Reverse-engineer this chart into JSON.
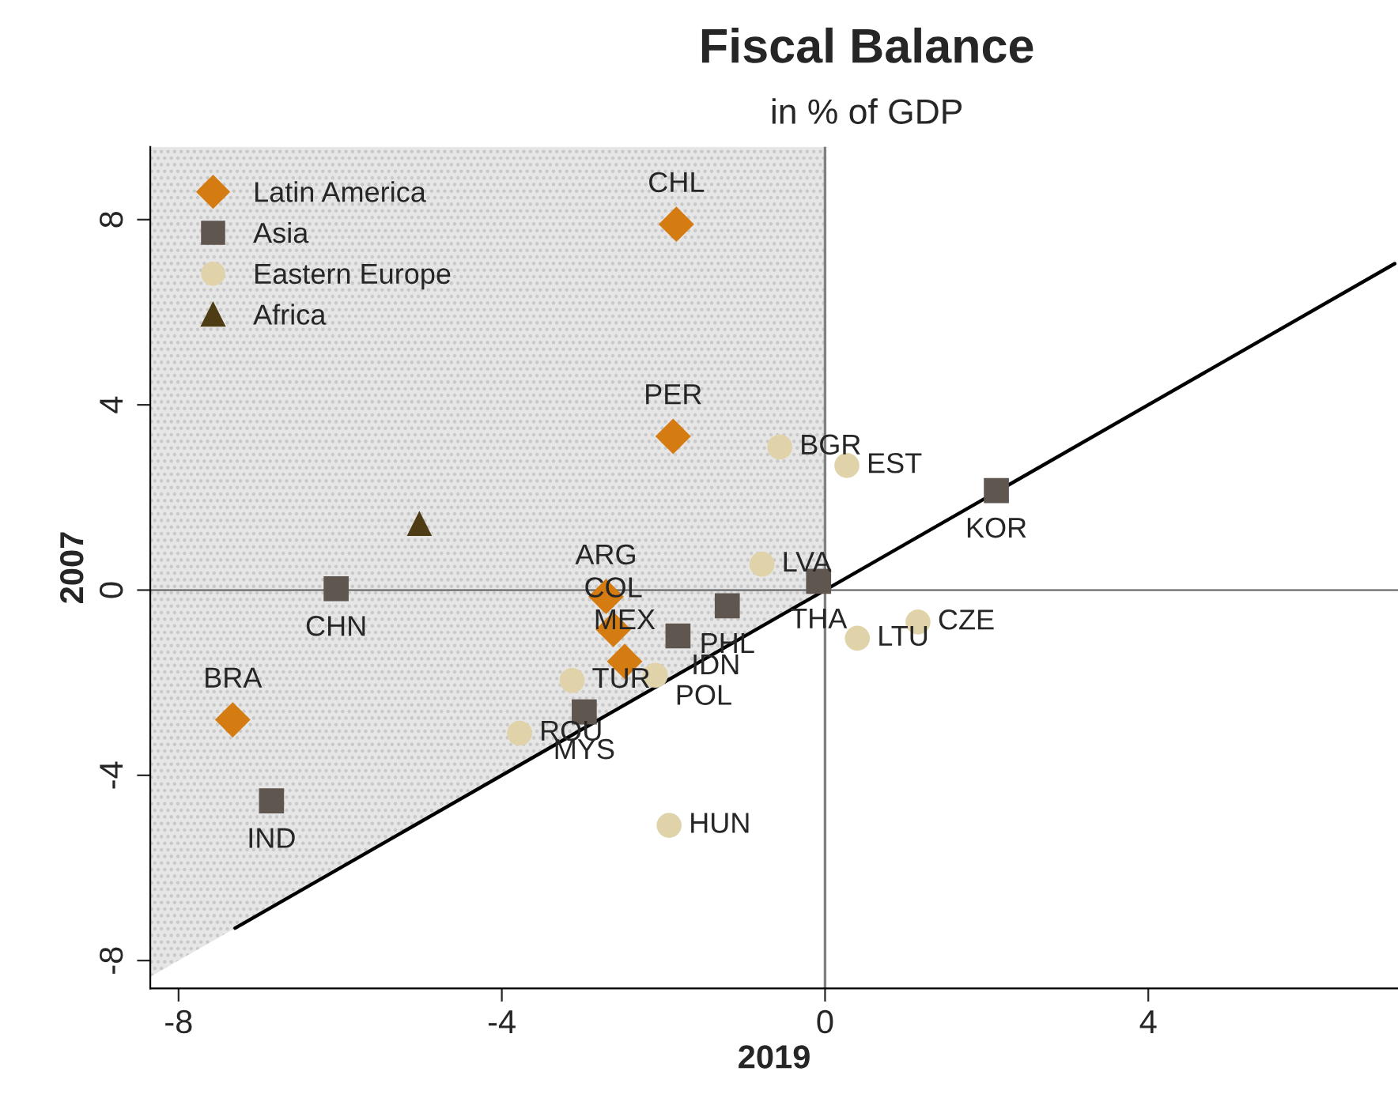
{
  "chart_data": {
    "type": "scatter",
    "title": "Fiscal Balance",
    "subtitle": "in % of GDP",
    "xlabel": "2019",
    "ylabel": "2007",
    "xlim": [
      -8.35,
      7.09
    ],
    "ylim": [
      -8.6,
      9.57
    ],
    "xticks": [
      -8,
      -4,
      0,
      4
    ],
    "yticks": [
      -8,
      -4,
      0,
      4,
      8
    ],
    "grid": false,
    "legend": "top left",
    "series": [
      {
        "name": "Latin America",
        "color": "#d47b12",
        "marker": "diamond",
        "x": [
          -1.84,
          -1.88,
          -2.71,
          -2.62,
          -2.48,
          -7.33
        ],
        "values": [
          7.9,
          3.32,
          -0.14,
          -0.85,
          -1.54,
          -2.8
        ]
      },
      {
        "name": "Asia",
        "color": "#5f5650",
        "marker": "square",
        "x": [
          -6.05,
          -6.85,
          2.12,
          -2.98,
          -0.08,
          -1.21,
          -1.82
        ],
        "values": [
          0.03,
          -4.55,
          2.15,
          -2.63,
          0.19,
          -0.34,
          -0.99
        ]
      },
      {
        "name": "Eastern Europe",
        "color": "#e0d3a9",
        "marker": "circle",
        "x": [
          -0.56,
          0.27,
          -0.78,
          -2.1,
          -3.13,
          -3.78,
          -1.93,
          1.15,
          0.4
        ],
        "values": [
          3.09,
          2.69,
          0.56,
          -1.84,
          -1.95,
          -3.09,
          -5.08,
          -0.69,
          -1.04
        ]
      },
      {
        "name": "Africa",
        "color": "#4e3c14",
        "marker": "triangle",
        "x": [
          -5.02
        ],
        "values": [
          1.44
        ]
      },
      {
        "type": "line",
        "color": "#000000",
        "x": [
          -7.3,
          7.05
        ],
        "values": [
          -7.3,
          7.05
        ]
      }
    ],
    "ref_lines": [
      {
        "axis": "x",
        "value": 0,
        "color": "#808080"
      },
      {
        "axis": "y",
        "value": 0,
        "color": "#5a5a5a"
      }
    ],
    "annotations": [
      {
        "text": "CHL",
        "x": -1.84,
        "y": 7.9
      },
      {
        "text": "PER",
        "x": -1.88,
        "y": 3.32
      },
      {
        "text": "ARG",
        "x": -2.71,
        "y": -0.14
      },
      {
        "text": "COL",
        "x": -2.62,
        "y": -0.85
      },
      {
        "text": "MEX",
        "x": -2.48,
        "y": -1.54
      },
      {
        "text": "BRA",
        "x": -7.33,
        "y": -2.8
      },
      {
        "text": "CHN",
        "x": -6.05,
        "y": 0.03
      },
      {
        "text": "IND",
        "x": -6.85,
        "y": -4.55
      },
      {
        "text": "KOR",
        "x": 2.12,
        "y": 2.15
      },
      {
        "text": "MYS",
        "x": -2.98,
        "y": -2.63
      },
      {
        "text": "THA",
        "x": -0.08,
        "y": 0.19
      },
      {
        "text": "PHL",
        "x": -1.21,
        "y": -0.34
      },
      {
        "text": "IDN",
        "x": -1.82,
        "y": -0.99
      },
      {
        "text": "BGR",
        "x": -0.56,
        "y": 3.09
      },
      {
        "text": "EST",
        "x": 0.27,
        "y": 2.69
      },
      {
        "text": "LVA",
        "x": -0.78,
        "y": 0.56
      },
      {
        "text": "POL",
        "x": -2.1,
        "y": -1.84
      },
      {
        "text": "TUR",
        "x": -3.13,
        "y": -1.95
      },
      {
        "text": "ROU",
        "x": -3.78,
        "y": -3.09
      },
      {
        "text": "HUN",
        "x": -1.93,
        "y": -5.08
      },
      {
        "text": "CZE",
        "x": 1.15,
        "y": -0.69
      },
      {
        "text": "LTU",
        "x": 0.4,
        "y": -1.04
      }
    ]
  }
}
